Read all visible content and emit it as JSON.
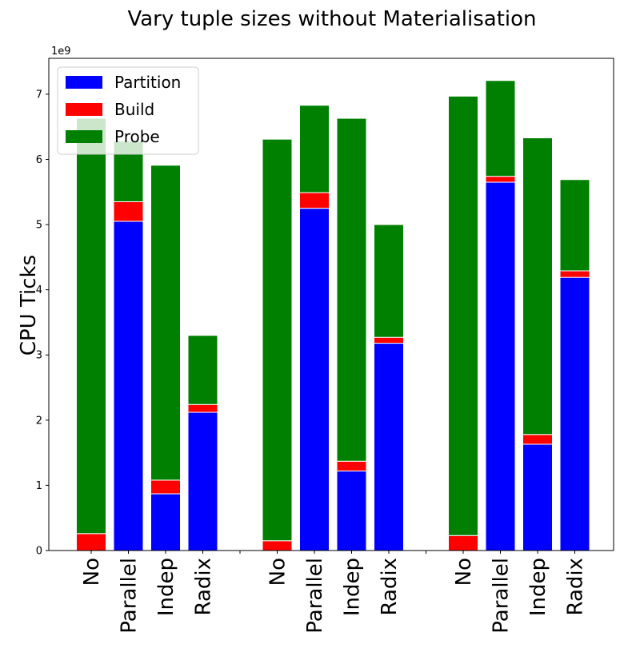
{
  "chart_data": {
    "type": "bar",
    "stacked": true,
    "title": "Vary tuple sizes without Materialisation",
    "xlabel": "",
    "ylabel": "CPU Ticks",
    "y_multiplier": "1e9",
    "ylim": [
      0,
      7.55
    ],
    "yticks": [
      "0",
      "1",
      "2",
      "3",
      "4",
      "5",
      "6",
      "7"
    ],
    "legend_position": "upper-left",
    "grid": false,
    "groups": [
      {
        "categories": [
          "No",
          "Parallel",
          "Indep",
          "Radix"
        ]
      },
      {
        "categories": [
          "No",
          "Parallel",
          "Indep",
          "Radix"
        ]
      },
      {
        "categories": [
          "No",
          "Parallel",
          "Indep",
          "Radix"
        ]
      }
    ],
    "series": [
      {
        "name": "Partition",
        "color": "#0000ff",
        "values": [
          0,
          5.05,
          0.87,
          2.12,
          0,
          5.25,
          1.22,
          3.18,
          0,
          5.65,
          1.63,
          4.19
        ]
      },
      {
        "name": "Build",
        "color": "#ff0000",
        "values": [
          0.26,
          0.3,
          0.21,
          0.12,
          0.15,
          0.24,
          0.15,
          0.09,
          0.23,
          0.09,
          0.15,
          0.1
        ]
      },
      {
        "name": "Probe",
        "color": "#008000",
        "values": [
          6.37,
          0.93,
          4.83,
          1.06,
          6.16,
          1.34,
          5.26,
          1.73,
          6.74,
          1.47,
          4.55,
          1.4
        ]
      }
    ]
  }
}
